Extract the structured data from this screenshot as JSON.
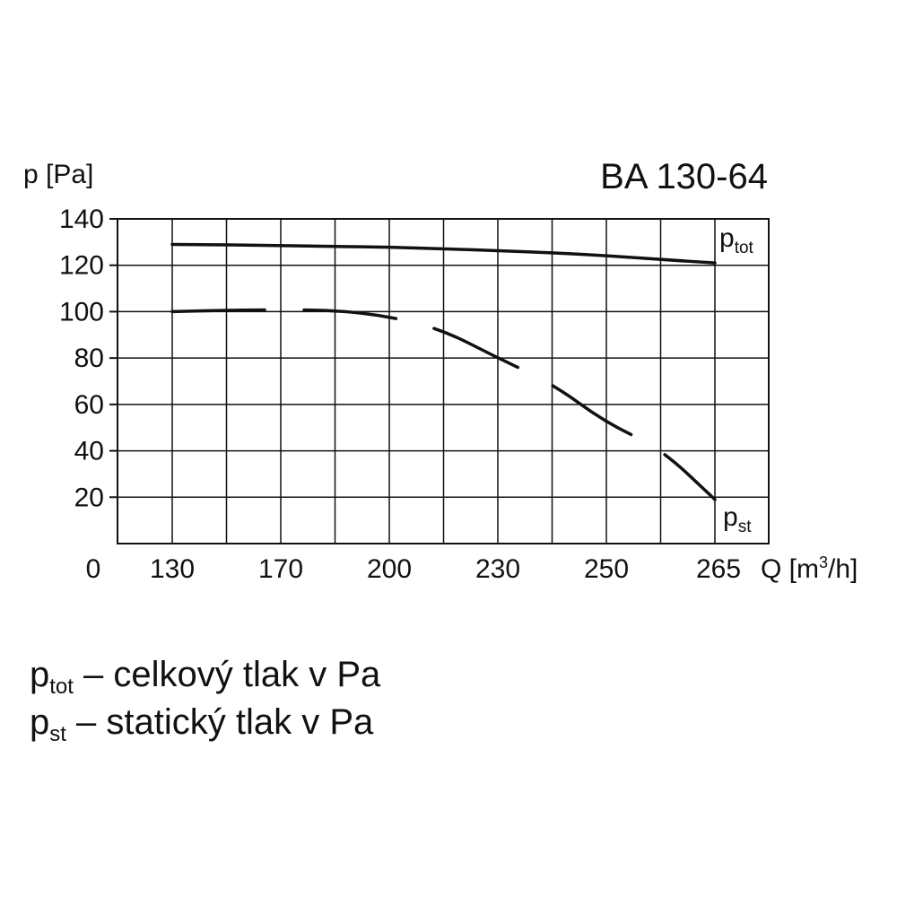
{
  "chart_data": {
    "type": "line",
    "title": "BA 130-64",
    "ylabel": "p [Pa]",
    "xlabel_main": "Q [m",
    "xlabel_sup": "3",
    "xlabel_end": "/h]",
    "origin_label": "0",
    "categories": [
      "130",
      "170",
      "200",
      "230",
      "250",
      "265"
    ],
    "ylim": [
      0,
      140
    ],
    "yticks": [
      20,
      40,
      60,
      80,
      100,
      120,
      140
    ],
    "grid": true,
    "series": [
      {
        "name_main": "p",
        "name_sub": "tot",
        "style": "solid",
        "x": [
          0,
          0.5,
          1,
          1.5,
          2,
          2.5,
          3,
          3.5,
          4,
          4.5,
          5
        ],
        "values": [
          129,
          128.8,
          128.5,
          128.1,
          127.8,
          127.1,
          126.3,
          125.4,
          124.1,
          122.5,
          121
        ]
      },
      {
        "name_main": "p",
        "name_sub": "st",
        "style": "dashed",
        "x": [
          0,
          0.5,
          1,
          1.5,
          2,
          2.5,
          3,
          3.5,
          4,
          4.5,
          5
        ],
        "values": [
          100,
          100.6,
          100.8,
          100.6,
          98,
          92,
          80,
          69,
          52,
          41,
          19
        ]
      }
    ],
    "color": "#111111"
  },
  "legend": [
    {
      "symbol": "p",
      "sub": "tot",
      "text": " – celkový tlak v Pa"
    },
    {
      "symbol": "p",
      "sub": "st",
      "text": " – statický  tlak v Pa"
    }
  ]
}
